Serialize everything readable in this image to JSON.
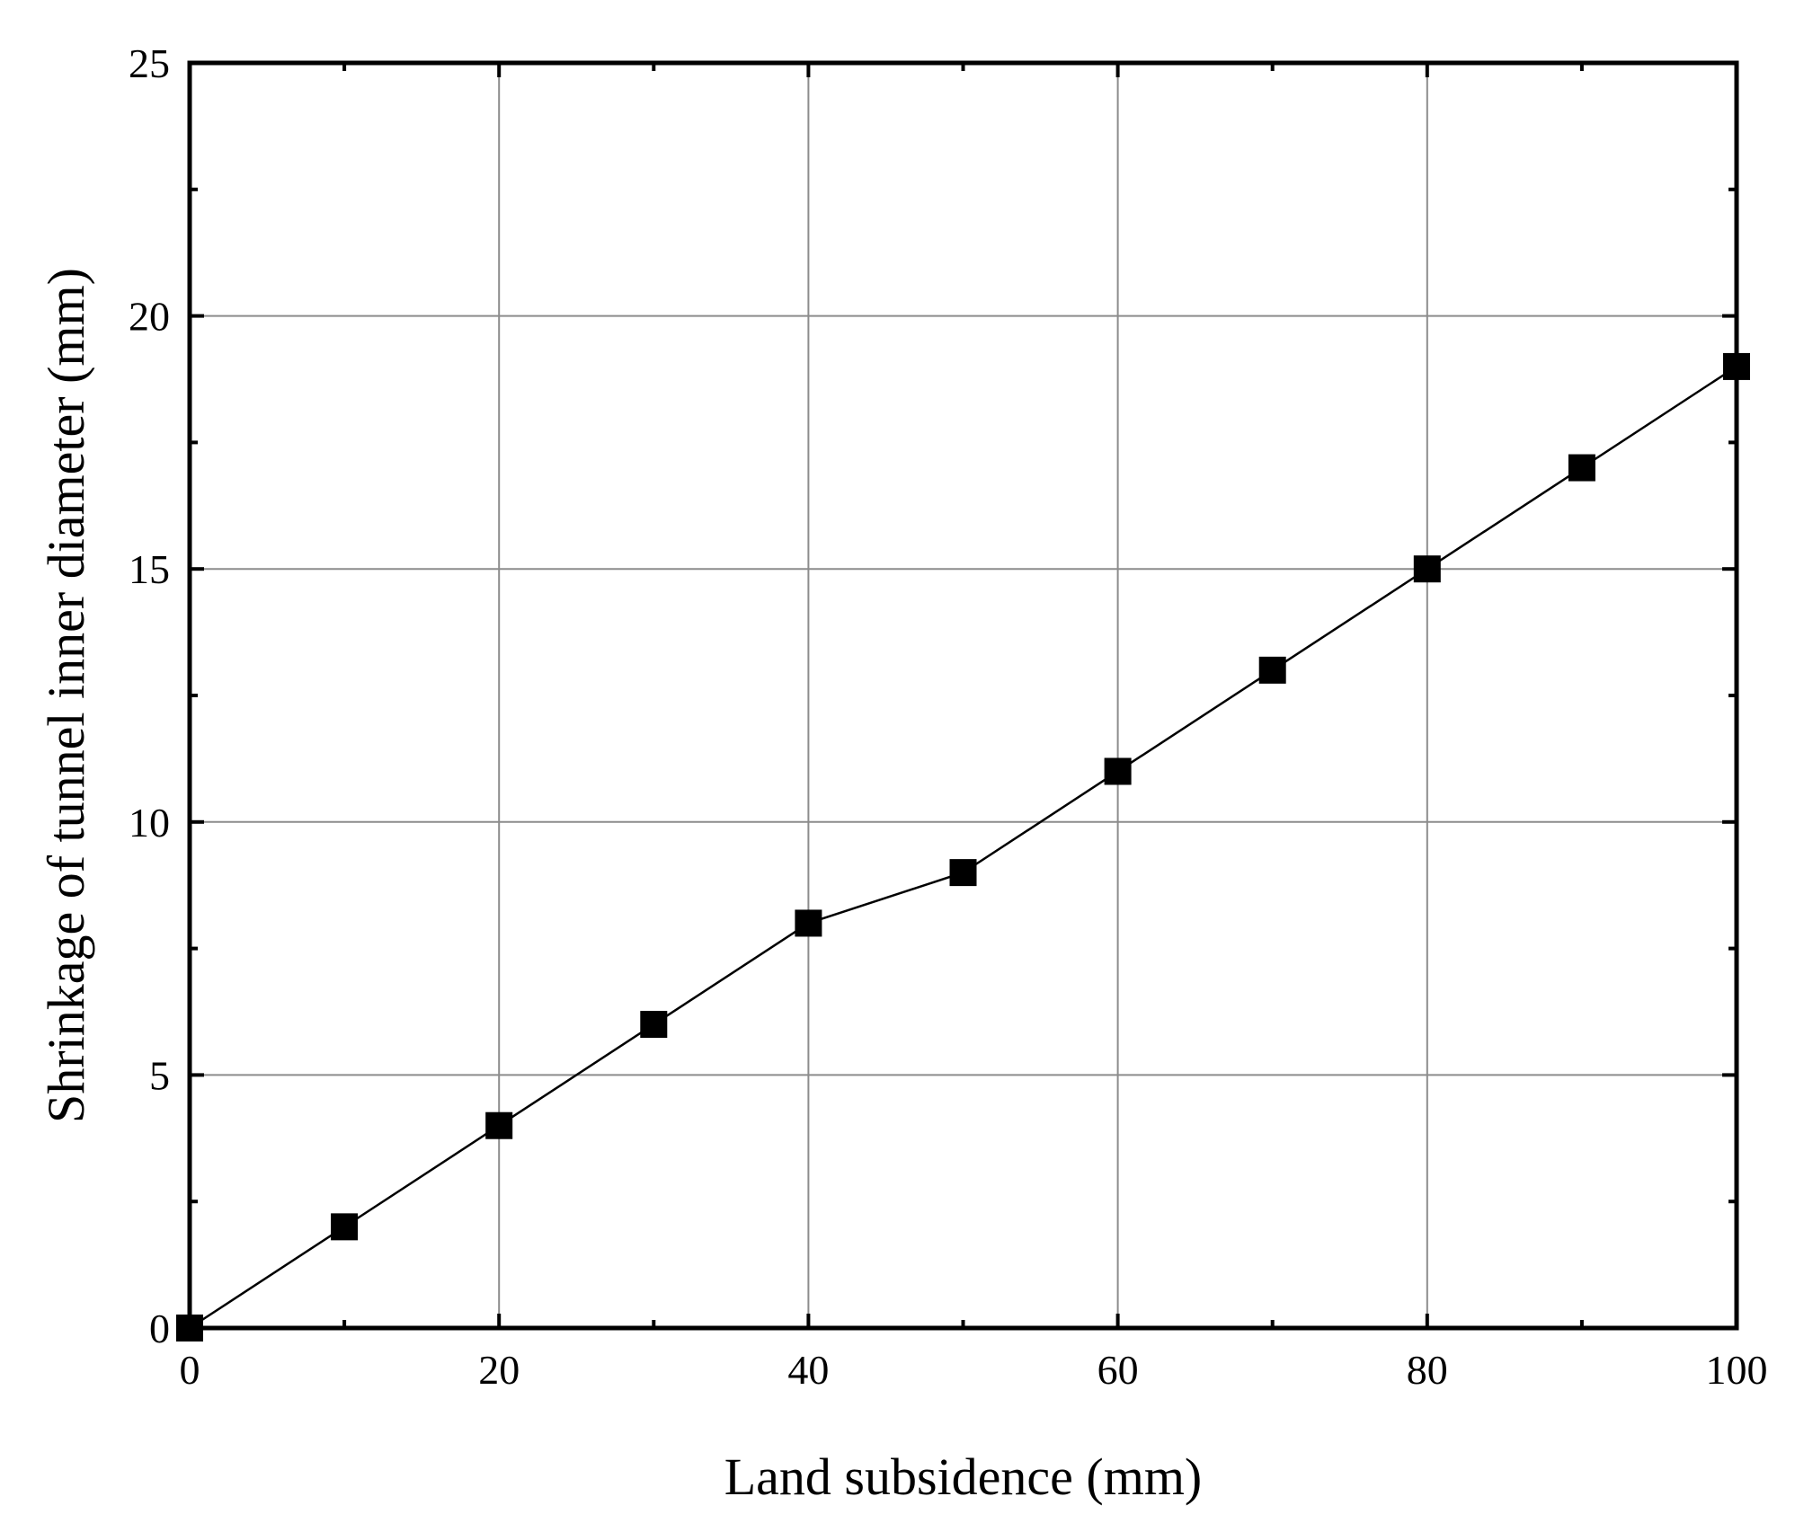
{
  "chart_data": {
    "type": "line",
    "title": "",
    "xlabel": "Land subsidence (mm)",
    "ylabel": "Shrinkage of tunnel inner diameter (mm)",
    "xlim": [
      0,
      100
    ],
    "ylim": [
      0,
      25
    ],
    "xticks": [
      0,
      20,
      40,
      60,
      80,
      100
    ],
    "xtick_labels": [
      "0",
      "20",
      "40",
      "60",
      "80",
      "100"
    ],
    "yticks": [
      0,
      5,
      10,
      15,
      20,
      25
    ],
    "ytick_labels": [
      "0",
      "5",
      "10",
      "15",
      "20",
      "25"
    ],
    "grid": true,
    "legend": "none",
    "marker": "square",
    "colors": {
      "line": "#000000",
      "marker": "#000000",
      "grid": "#8c8c8c",
      "axes": "#000000"
    },
    "series": [
      {
        "x": [
          0,
          10,
          20,
          30,
          40,
          50,
          60,
          70,
          80,
          90,
          100
        ],
        "y": [
          0,
          2,
          4,
          6,
          8,
          9,
          11,
          13,
          15,
          17,
          19
        ]
      }
    ]
  }
}
